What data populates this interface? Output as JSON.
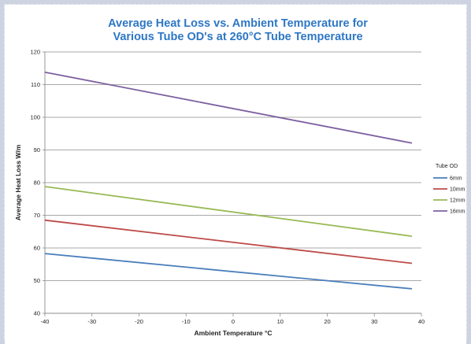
{
  "chart_data": {
    "type": "line",
    "title": "Average Heat Loss vs. Ambient Temperature for",
    "subtitle": "Various Tube OD's at 260°C Tube Temperature",
    "xlabel": "Ambient Temperature  °C",
    "ylabel": "Average Heat Loss W/m",
    "xlim": [
      -40,
      40
    ],
    "ylim": [
      40,
      120
    ],
    "xticks": [
      "-40",
      "-30",
      "-20",
      "-10",
      "0",
      "10",
      "20",
      "30",
      "40"
    ],
    "yticks": [
      "40",
      "50",
      "60",
      "70",
      "80",
      "90",
      "100",
      "110",
      "120"
    ],
    "grid": true,
    "legend_title": "Tube OD",
    "legend_position": "right",
    "x": [
      -40,
      38
    ],
    "series": [
      {
        "name": "6mm",
        "color": "#4a7ebb",
        "values": [
          58.3,
          47.5
        ]
      },
      {
        "name": "10mm",
        "color": "#be4b48",
        "values": [
          68.5,
          55.3
        ]
      },
      {
        "name": "12mm",
        "color": "#98b954",
        "values": [
          78.8,
          63.6
        ]
      },
      {
        "name": "16mm",
        "color": "#7d60a0",
        "values": [
          113.8,
          92.1
        ]
      }
    ]
  }
}
